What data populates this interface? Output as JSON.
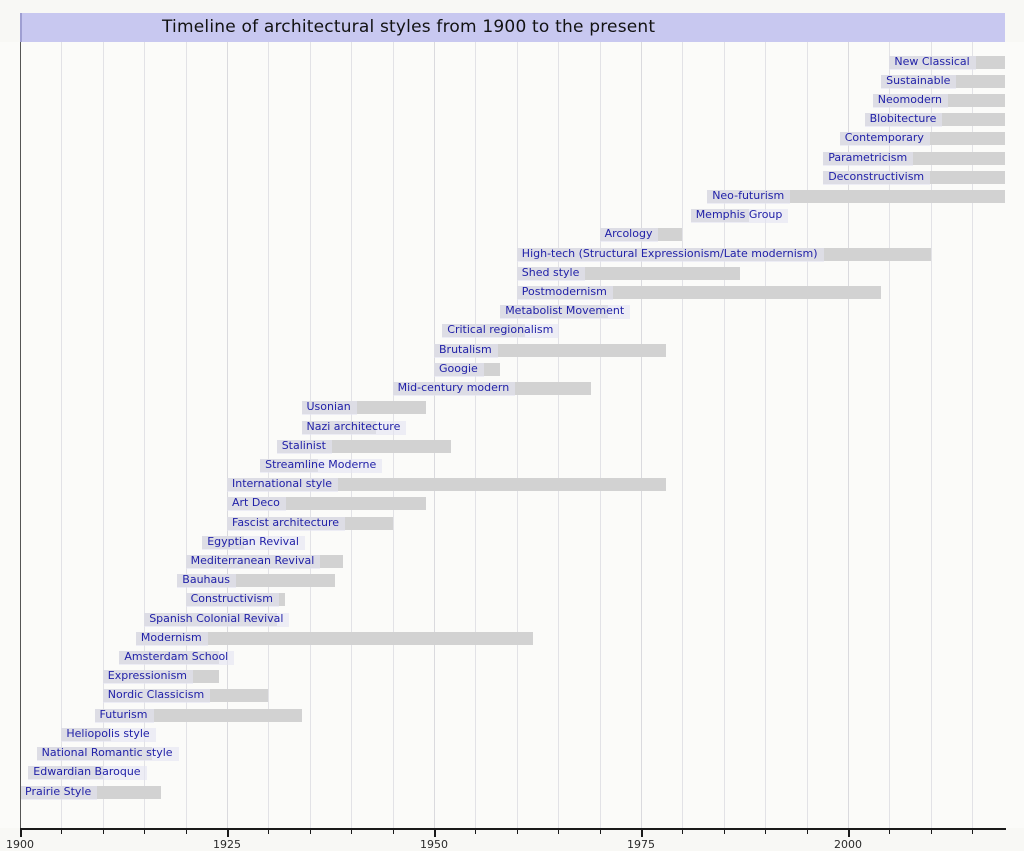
{
  "title_bar": {
    "title": "Timeline of architectural styles from 1900 to the present"
  },
  "colors": {
    "title_bg": "#c8c8f0",
    "bar": "#d2d2d2",
    "label_text": "#2121a8",
    "label_bg": "rgba(228,228,242,0.6)",
    "grid": "#e2e2e6",
    "axis": "#1a1a1a"
  },
  "chart_data": {
    "type": "bar",
    "subtype": "timeline-gantt",
    "title": "Timeline of architectural styles from 1900 to the present",
    "xlabel": "",
    "ylabel": "",
    "grid": "on",
    "legend_position": "none",
    "axis": {
      "min": 1900,
      "max": 2019,
      "present": 2019,
      "major_ticks": [
        1900,
        1925,
        1950,
        1975,
        2000
      ],
      "minor_step": 5
    },
    "bars": [
      {
        "label": "New Classical",
        "start": 2005,
        "end": 2019,
        "present": true
      },
      {
        "label": "Sustainable",
        "start": 2004,
        "end": 2019,
        "present": true
      },
      {
        "label": "Neomodern",
        "start": 2003,
        "end": 2019,
        "present": true
      },
      {
        "label": "Blobitecture",
        "start": 2002,
        "end": 2019,
        "present": true
      },
      {
        "label": "Contemporary",
        "start": 1999,
        "end": 2019,
        "present": true
      },
      {
        "label": "Parametricism",
        "start": 1997,
        "end": 2019,
        "present": true
      },
      {
        "label": "Deconstructivism",
        "start": 1997,
        "end": 2019,
        "present": true
      },
      {
        "label": "Neo-futurism",
        "start": 1983,
        "end": 2019,
        "present": true
      },
      {
        "label": "Memphis Group",
        "start": 1981,
        "end": 1988,
        "present": false
      },
      {
        "label": "Arcology",
        "start": 1970,
        "end": 1980,
        "present": false
      },
      {
        "label": "High-tech (Structural Expressionism/Late modernism)",
        "start": 1960,
        "end": 2010,
        "present": false
      },
      {
        "label": "Shed style",
        "start": 1960,
        "end": 1987,
        "present": false
      },
      {
        "label": "Postmodernism",
        "start": 1960,
        "end": 2004,
        "present": false
      },
      {
        "label": "Metabolist Movement",
        "start": 1958,
        "end": 1971,
        "present": false
      },
      {
        "label": "Critical regionalism",
        "start": 1951,
        "end": 1961,
        "present": false
      },
      {
        "label": "Brutalism",
        "start": 1950,
        "end": 1978,
        "present": false
      },
      {
        "label": "Googie",
        "start": 1950,
        "end": 1958,
        "present": false
      },
      {
        "label": "Mid-century modern",
        "start": 1945,
        "end": 1969,
        "present": false
      },
      {
        "label": "Usonian",
        "start": 1934,
        "end": 1949,
        "present": false
      },
      {
        "label": "Nazi architecture",
        "start": 1934,
        "end": 1943,
        "present": false
      },
      {
        "label": "Stalinist",
        "start": 1931,
        "end": 1952,
        "present": false
      },
      {
        "label": "Streamline Moderne",
        "start": 1929,
        "end": 1936,
        "present": false
      },
      {
        "label": "International style",
        "start": 1925,
        "end": 1978,
        "present": false
      },
      {
        "label": "Art Deco",
        "start": 1925,
        "end": 1949,
        "present": false
      },
      {
        "label": "Fascist architecture",
        "start": 1925,
        "end": 1945,
        "present": false
      },
      {
        "label": "Egyptian Revival",
        "start": 1922,
        "end": 1927,
        "present": false
      },
      {
        "label": "Mediterranean Revival",
        "start": 1920,
        "end": 1939,
        "present": false
      },
      {
        "label": "Bauhaus",
        "start": 1919,
        "end": 1938,
        "present": false
      },
      {
        "label": "Constructivism",
        "start": 1920,
        "end": 1932,
        "present": false
      },
      {
        "label": "Spanish Colonial Revival",
        "start": 1915,
        "end": 1931,
        "present": false
      },
      {
        "label": "Modernism",
        "start": 1914,
        "end": 1962,
        "present": false
      },
      {
        "label": "Amsterdam School",
        "start": 1912,
        "end": 1924,
        "present": false
      },
      {
        "label": "Expressionism",
        "start": 1910,
        "end": 1924,
        "present": false
      },
      {
        "label": "Nordic Classicism",
        "start": 1910,
        "end": 1930,
        "present": false
      },
      {
        "label": "Futurism",
        "start": 1909,
        "end": 1934,
        "present": false
      },
      {
        "label": "Heliopolis style",
        "start": 1905,
        "end": 1911,
        "present": false
      },
      {
        "label": "National Romantic style",
        "start": 1902,
        "end": 1916,
        "present": false
      },
      {
        "label": "Edwardian Baroque",
        "start": 1901,
        "end": 1910,
        "present": false
      },
      {
        "label": "Prairie Style",
        "start": 1900,
        "end": 1917,
        "present": false
      }
    ]
  }
}
